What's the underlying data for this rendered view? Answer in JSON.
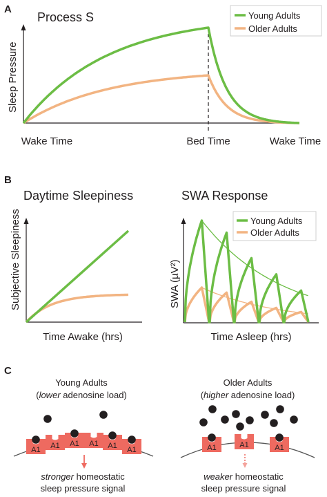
{
  "panels": {
    "a": {
      "letter": "A",
      "title": "Process S",
      "ylabel": "Sleep Pressure",
      "xticks": [
        "Wake Time",
        "Bed Time",
        "Wake Time"
      ]
    },
    "b": {
      "letter": "B",
      "left": {
        "title": "Daytime Sleepiness",
        "ylabel": "Subjective Sleepiness",
        "xlabel": "Time Awake (hrs)"
      },
      "right": {
        "title": "SWA Response",
        "ylabel": "SWA (µV²)",
        "xlabel": "Time Asleep (hrs)"
      }
    },
    "c": {
      "letter": "C",
      "young": {
        "heading": "Young Adults",
        "load_open": "(",
        "load_em": "lower",
        "load_rest": " adenosine load)",
        "signal_em": "stronger",
        "signal_rest": " homeostatic",
        "signal_line2": "sleep pressure signal",
        "receptor_label": "A1",
        "receptor_count": 6,
        "bound_adenosine": 4,
        "free_adenosine": 2
      },
      "older": {
        "heading": "Older Adults",
        "load_open": "(",
        "load_em": "higher",
        "load_rest": " adenosine load)",
        "signal_em": "weaker",
        "signal_rest": " homeostatic",
        "signal_line2": "sleep pressure signal",
        "receptor_label": "A1",
        "receptor_count": 3,
        "bound_adenosine": 2,
        "free_adenosine": 10
      }
    }
  },
  "legend": {
    "young": "Young Adults",
    "older": "Older Adults"
  },
  "colors": {
    "young": "#6cbd45",
    "older": "#f2b482",
    "receptor": "#ee6a60",
    "adenosine": "#231f20",
    "axis": "#231f20",
    "membrane": "#555555"
  },
  "chart_data": [
    {
      "type": "line",
      "panel": "A",
      "title": "Process S",
      "ylabel": "Sleep Pressure",
      "x_categories": [
        "Wake Time",
        "Bed Time",
        "Wake Time"
      ],
      "series": [
        {
          "name": "Young Adults",
          "peak_at_bed_time": 1.0
        },
        {
          "name": "Older Adults",
          "peak_at_bed_time": 0.5
        }
      ]
    },
    {
      "type": "line",
      "panel": "B",
      "title": "Daytime Sleepiness",
      "xlabel": "Time Awake (hrs)",
      "ylabel": "Subjective Sleepiness",
      "series": [
        {
          "name": "Young Adults",
          "shape": "linear rise",
          "end_value": 1.0
        },
        {
          "name": "Older Adults",
          "shape": "saturating rise",
          "end_value": 0.3
        }
      ]
    },
    {
      "type": "line",
      "panel": "B",
      "title": "SWA Response",
      "xlabel": "Time Asleep (hrs)",
      "ylabel": "SWA (µV²)",
      "series": [
        {
          "name": "Young Adults",
          "cycle_peaks": [
            1.0,
            0.88,
            0.63,
            0.47,
            0.31
          ]
        },
        {
          "name": "Older Adults",
          "cycle_peaks": [
            0.34,
            0.29,
            0.2,
            0.14,
            0.1
          ]
        }
      ]
    }
  ]
}
